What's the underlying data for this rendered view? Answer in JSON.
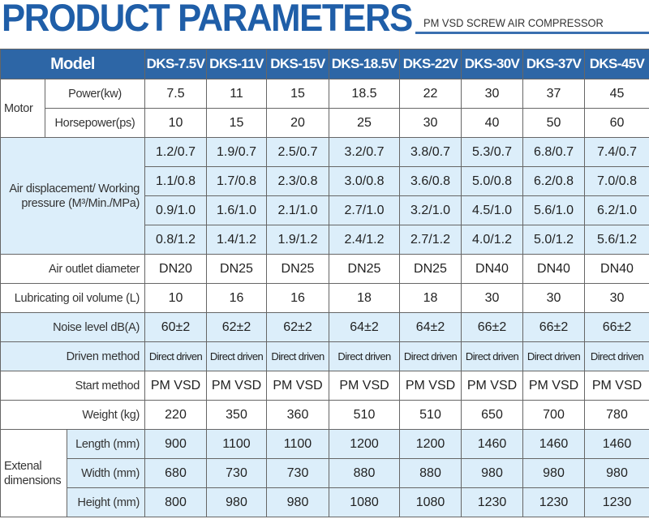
{
  "header": {
    "title": "PRODUCT PARAMETERS",
    "subtitle": "PM VSD SCREW AIR COMPRESSOR"
  },
  "table": {
    "model_label": "Model",
    "models": [
      "DKS-7.5V",
      "DKS-11V",
      "DKS-15V",
      "DKS-18.5V",
      "DKS-22V",
      "DKS-30V",
      "DKS-37V",
      "DKS-45V"
    ],
    "motor_label": "Motor",
    "power_label": "Power(kw)",
    "power": [
      "7.5",
      "11",
      "15",
      "18.5",
      "22",
      "30",
      "37",
      "45"
    ],
    "horsepower_label": "Horsepower(ps)",
    "horsepower": [
      "10",
      "15",
      "20",
      "25",
      "30",
      "40",
      "50",
      "60"
    ],
    "air_label": "Air displacement/ Working pressure (M³/Min./MPa)",
    "air_rows": [
      [
        "1.2/0.7",
        "1.9/0.7",
        "2.5/0.7",
        "3.2/0.7",
        "3.8/0.7",
        "5.3/0.7",
        "6.8/0.7",
        "7.4/0.7"
      ],
      [
        "1.1/0.8",
        "1.7/0.8",
        "2.3/0.8",
        "3.0/0.8",
        "3.6/0.8",
        "5.0/0.8",
        "6.2/0.8",
        "7.0/0.8"
      ],
      [
        "0.9/1.0",
        "1.6/1.0",
        "2.1/1.0",
        "2.7/1.0",
        "3.2/1.0",
        "4.5/1.0",
        "5.6/1.0",
        "6.2/1.0"
      ],
      [
        "0.8/1.2",
        "1.4/1.2",
        "1.9/1.2",
        "2.4/1.2",
        "2.7/1.2",
        "4.0/1.2",
        "5.0/1.2",
        "5.6/1.2"
      ]
    ],
    "outlet_label": "Air outlet diameter",
    "outlet": [
      "DN20",
      "DN25",
      "DN25",
      "DN25",
      "DN25",
      "DN40",
      "DN40",
      "DN40"
    ],
    "oil_label": "Lubricating oil volume (L)",
    "oil": [
      "10",
      "16",
      "16",
      "18",
      "18",
      "30",
      "30",
      "30"
    ],
    "noise_label": "Noise level dB(A)",
    "noise": [
      "60±2",
      "62±2",
      "62±2",
      "64±2",
      "64±2",
      "66±2",
      "66±2",
      "66±2"
    ],
    "driven_label": "Driven method",
    "driven": [
      "Direct driven",
      "Direct driven",
      "Direct driven",
      "Direct driven",
      "Direct driven",
      "Direct driven",
      "Direct driven",
      "Direct driven"
    ],
    "start_label": "Start method",
    "start": [
      "PM VSD",
      "PM VSD",
      "PM VSD",
      "PM VSD",
      "PM VSD",
      "PM VSD",
      "PM VSD",
      "PM VSD"
    ],
    "weight_label": "Weight (kg)",
    "weight": [
      "220",
      "350",
      "360",
      "510",
      "510",
      "650",
      "700",
      "780"
    ],
    "dims_label": "Extenal dimensions",
    "length_label": "Length (mm)",
    "length": [
      "900",
      "1100",
      "1100",
      "1200",
      "1200",
      "1460",
      "1460",
      "1460"
    ],
    "width_label": "Width (mm)",
    "width": [
      "680",
      "730",
      "730",
      "880",
      "880",
      "980",
      "980",
      "980"
    ],
    "height_label": "Height (mm)",
    "height": [
      "800",
      "980",
      "980",
      "1080",
      "1080",
      "1230",
      "1230",
      "1230"
    ]
  },
  "colors": {
    "title": "#1f5ea8",
    "header_bg": "#2d66a6",
    "row_blue": "#dceefa"
  }
}
